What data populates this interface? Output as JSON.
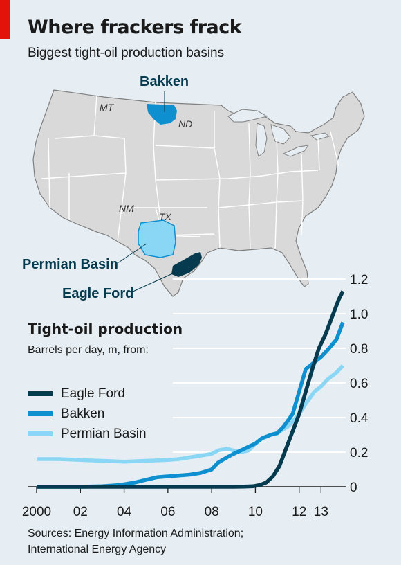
{
  "header": {
    "title": "Where frackers frack",
    "subtitle": "Biggest tight-oil production basins"
  },
  "map": {
    "basins": [
      {
        "label": "Bakken",
        "color": "#0d8fd0"
      },
      {
        "label": "Permian Basin",
        "color": "#8ad6f5"
      },
      {
        "label": "Eagle Ford",
        "color": "#063b4f"
      }
    ],
    "state_labels": [
      "MT",
      "ND",
      "NM",
      "TX"
    ],
    "colors": {
      "land": "#d9d9d9",
      "border": "#ffffff",
      "outline": "#7f7f7f",
      "lakes": "#e6eef3"
    }
  },
  "chart_data": {
    "type": "line",
    "title": "Tight-oil production",
    "ylabel": "Barrels per day, m, from:",
    "xlim": [
      2000,
      2014
    ],
    "ylim": [
      0,
      1.2
    ],
    "yticks": [
      0,
      0.2,
      0.4,
      0.6,
      0.8,
      1.0,
      1.2
    ],
    "ytick_labels": [
      "0",
      "0.2",
      "0.4",
      "0.6",
      "0.8",
      "1.0",
      "1.2"
    ],
    "xticks": [
      2000,
      2002,
      2004,
      2006,
      2008,
      2010,
      2012,
      2013
    ],
    "xtick_labels": [
      "2000",
      "02",
      "04",
      "06",
      "08",
      "10",
      "12",
      "13"
    ],
    "grid": true,
    "series": [
      {
        "name": "Eagle Ford",
        "color": "#063b4f",
        "x": [
          2000,
          2001,
          2002,
          2003,
          2004,
          2005,
          2006,
          2007,
          2008,
          2009,
          2009.5,
          2009.9,
          2010.2,
          2010.5,
          2010.8,
          2011.1,
          2011.4,
          2011.7,
          2012,
          2012.3,
          2012.6,
          2012.9,
          2013.2,
          2013.5,
          2013.8,
          2014
        ],
        "y": [
          0,
          0,
          0,
          0,
          0,
          0,
          0,
          0,
          0,
          0,
          0.001,
          0.003,
          0.01,
          0.025,
          0.06,
          0.12,
          0.22,
          0.32,
          0.42,
          0.55,
          0.68,
          0.8,
          0.88,
          0.98,
          1.08,
          1.13
        ]
      },
      {
        "name": "Bakken",
        "color": "#0d8fd0",
        "x": [
          2000,
          2001,
          2002,
          2003,
          2003.8,
          2004.5,
          2005,
          2005.5,
          2006,
          2006.5,
          2007,
          2007.5,
          2008,
          2008.3,
          2008.7,
          2009,
          2009.5,
          2010,
          2010.3,
          2010.7,
          2011,
          2011.3,
          2011.7,
          2012,
          2012.3,
          2012.7,
          2013,
          2013.3,
          2013.7,
          2014
        ],
        "y": [
          0,
          0,
          0,
          0.003,
          0.01,
          0.025,
          0.04,
          0.055,
          0.06,
          0.065,
          0.07,
          0.08,
          0.1,
          0.14,
          0.17,
          0.19,
          0.22,
          0.25,
          0.28,
          0.3,
          0.31,
          0.35,
          0.42,
          0.55,
          0.68,
          0.72,
          0.75,
          0.79,
          0.85,
          0.95
        ]
      },
      {
        "name": "Permian Basin",
        "color": "#8ad6f5",
        "x": [
          2000,
          2001,
          2002,
          2003,
          2004,
          2005,
          2006,
          2006.5,
          2007,
          2007.5,
          2008,
          2008.3,
          2008.7,
          2009,
          2009.3,
          2009.7,
          2010,
          2010.3,
          2010.7,
          2011,
          2011.5,
          2012,
          2012.3,
          2012.7,
          2013,
          2013.3,
          2013.7,
          2014
        ],
        "y": [
          0.16,
          0.16,
          0.155,
          0.15,
          0.145,
          0.15,
          0.155,
          0.16,
          0.17,
          0.18,
          0.19,
          0.21,
          0.22,
          0.21,
          0.2,
          0.21,
          0.25,
          0.28,
          0.3,
          0.31,
          0.35,
          0.42,
          0.48,
          0.55,
          0.58,
          0.62,
          0.66,
          0.7
        ]
      }
    ]
  },
  "footer": {
    "source_line1": "Sources: Energy Information Administration;",
    "source_line2": "International Energy Agency"
  }
}
